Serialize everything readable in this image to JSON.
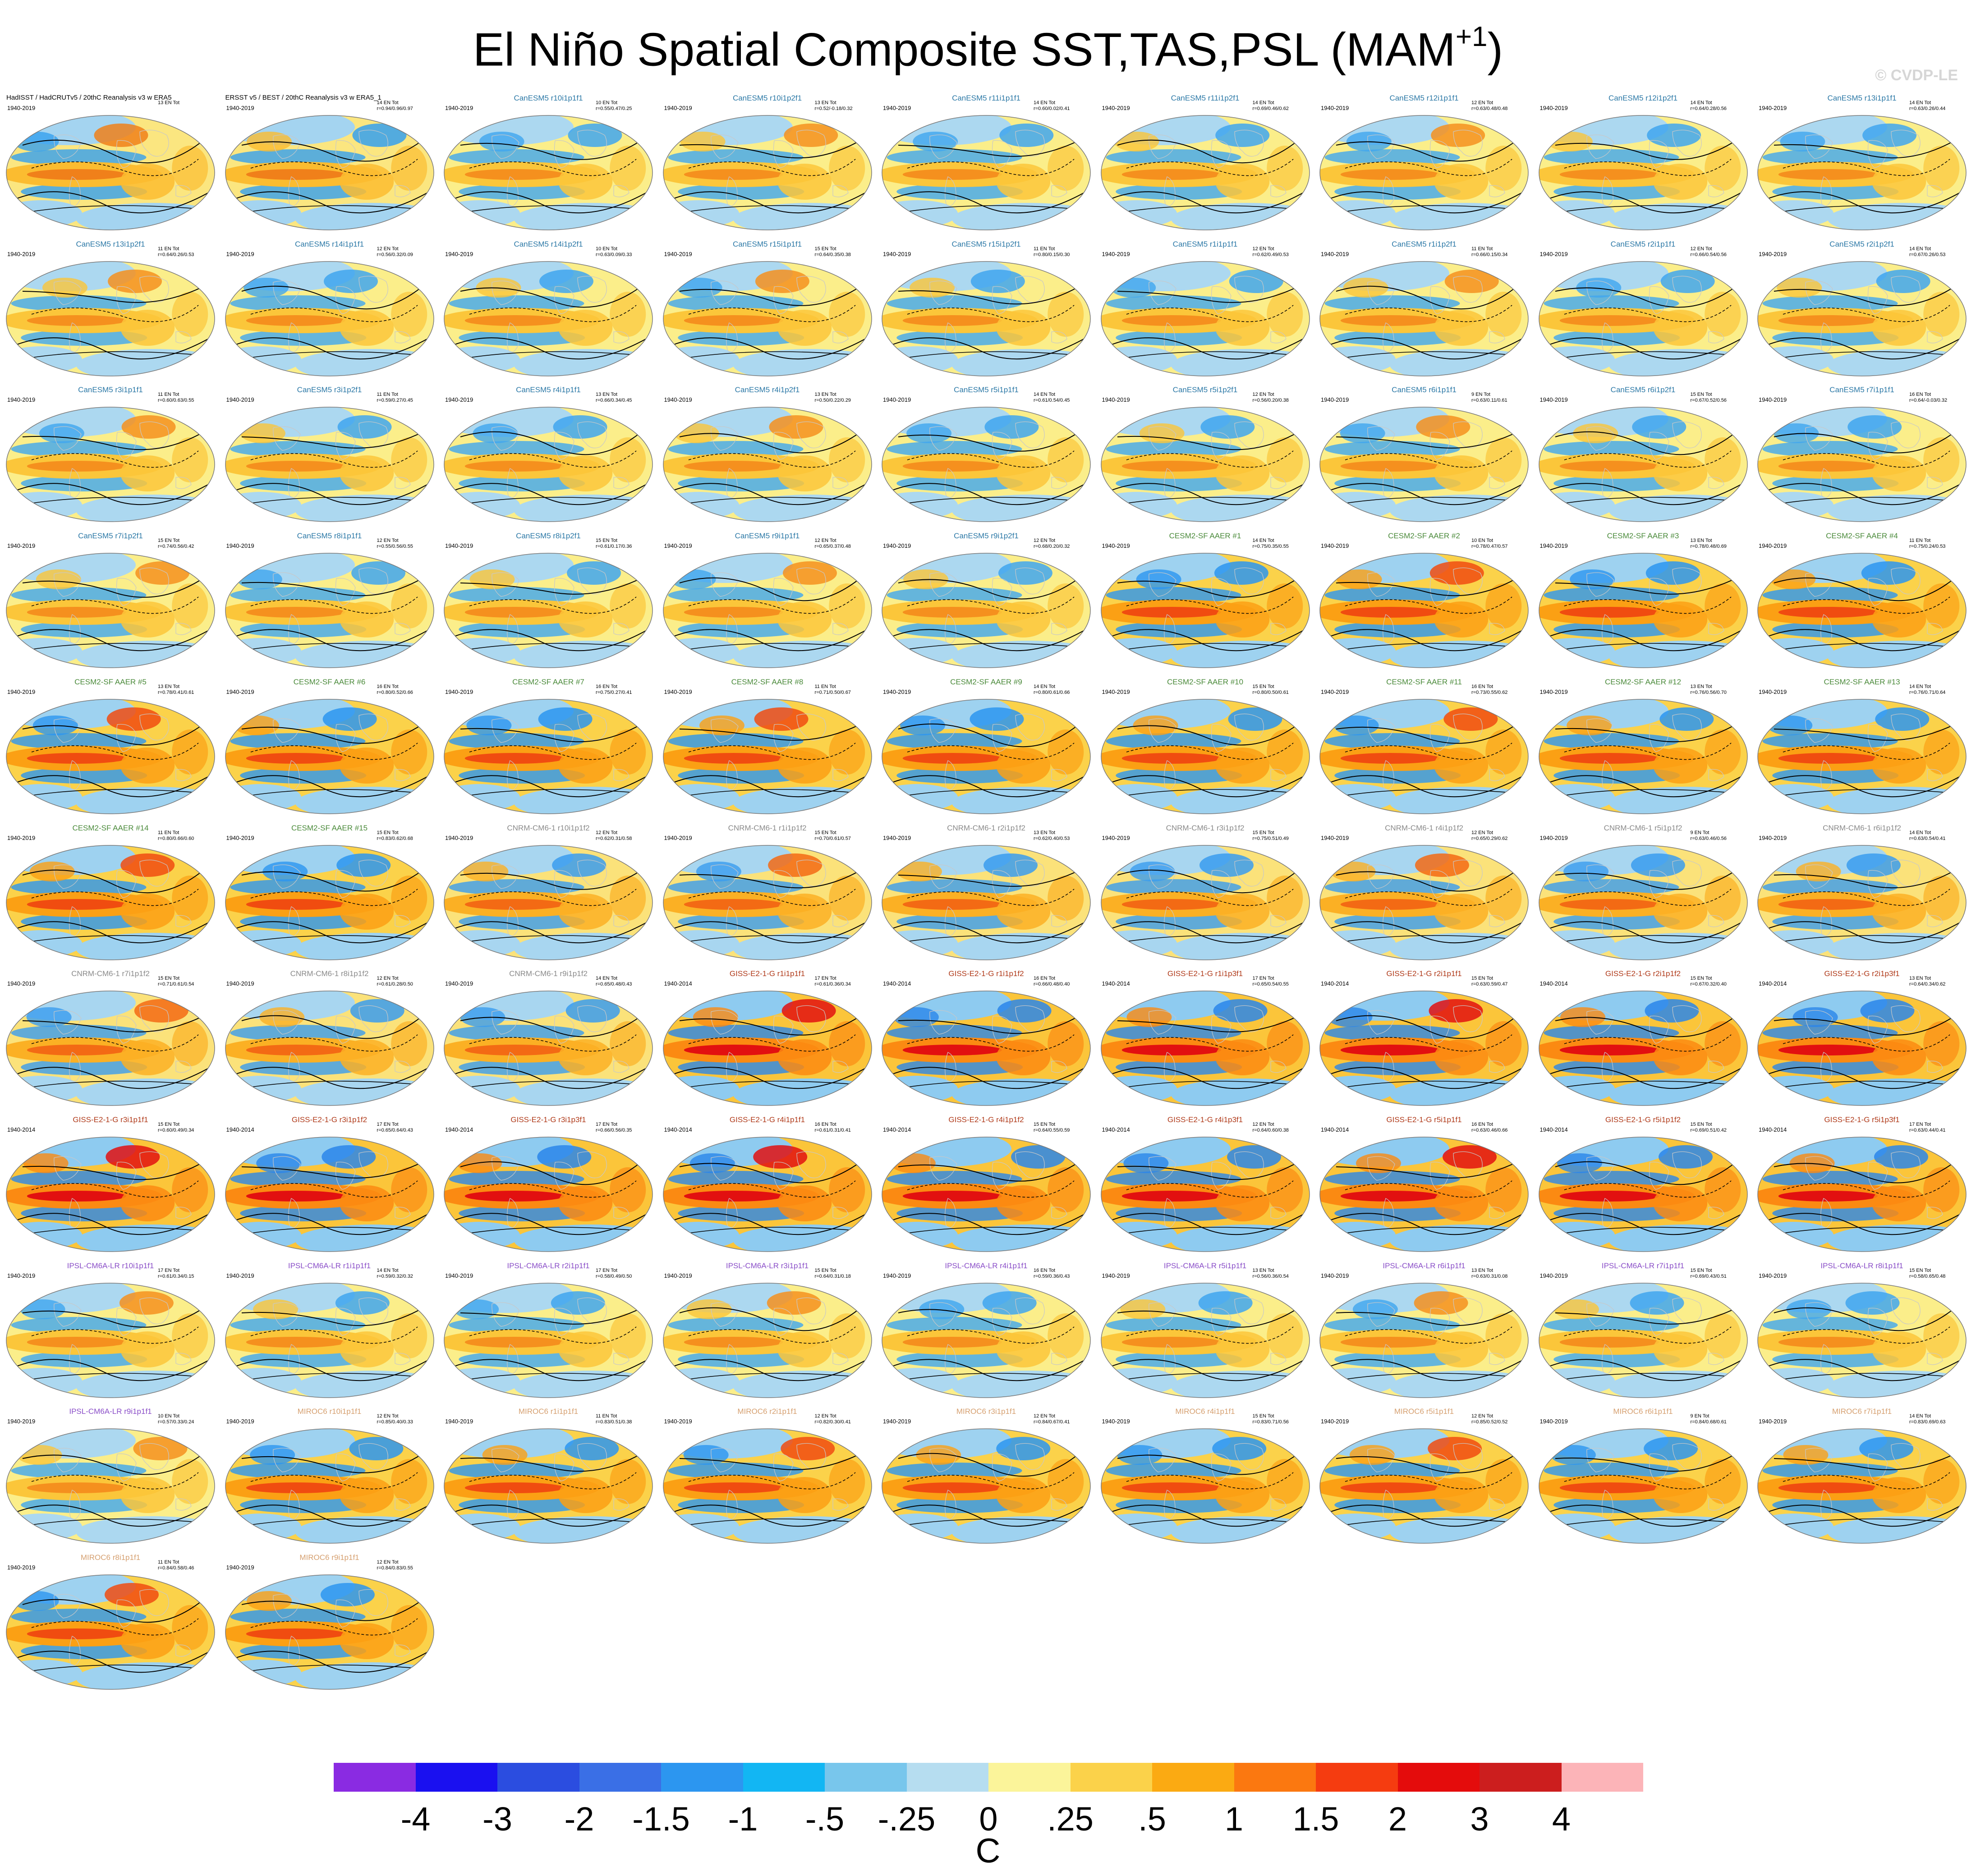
{
  "figure": {
    "title": "El Niño Spatial Composite SST,TAS,PSL (MAM",
    "title_sup": "+1",
    "title_close": ")",
    "watermark": "© CVDP-LE"
  },
  "colorbar": {
    "colors": [
      "#8a2be2",
      "#1a10f0",
      "#2b4de0",
      "#3a6fe6",
      "#2c96f0",
      "#12b6f3",
      "#78c6ec",
      "#b6ddf0",
      "#fbf49a",
      "#fbd24a",
      "#fbaa12",
      "#fb7810",
      "#f53c10",
      "#e40c0c",
      "#cc1e1e",
      "#fcb4b8"
    ],
    "labels": [
      "-4",
      "-3",
      "-2",
      "-1.5",
      "-1",
      "-.5",
      "-.25",
      "0",
      ".25",
      ".5",
      "1",
      "1.5",
      "2",
      "3",
      "4"
    ],
    "units": "C"
  },
  "panels": [
    {
      "name": "HadISST / HadCRUTv5 / 20thC Reanalysis v3 w ERA5",
      "years": "1940-2019",
      "events": "13 EN Tot",
      "stats": "",
      "color": "#000000",
      "style": "obs"
    },
    {
      "name": "ERSST v5 / BEST / 20thC Reanalysis v3 w ERA5_1",
      "years": "1940-2019",
      "events": "14 EN Tot",
      "stats": "r=0.94/0.96/0.97",
      "color": "#000000",
      "style": "obs"
    },
    {
      "name": "CanESM5 r10i1p1f1",
      "years": "1940-2019",
      "events": "10 EN Tot",
      "stats": "r=0.55/0.47/0.25",
      "color": "#2b78a6",
      "style": "pale"
    },
    {
      "name": "CanESM5 r10i1p2f1",
      "years": "1940-2019",
      "events": "13 EN Tot",
      "stats": "r=0.52/-0.18/0.32",
      "color": "#2b78a6",
      "style": "pale"
    },
    {
      "name": "CanESM5 r11i1p1f1",
      "years": "1940-2019",
      "events": "14 EN Tot",
      "stats": "r=0.60/0.02/0.41",
      "color": "#2b78a6",
      "style": "pale"
    },
    {
      "name": "CanESM5 r11i1p2f1",
      "years": "1940-2019",
      "events": "14 EN Tot",
      "stats": "r=0.69/0.46/0.62",
      "color": "#2b78a6",
      "style": "pale"
    },
    {
      "name": "CanESM5 r12i1p1f1",
      "years": "1940-2019",
      "events": "12 EN Tot",
      "stats": "r=0.63/0.48/0.48",
      "color": "#2b78a6",
      "style": "pale"
    },
    {
      "name": "CanESM5 r12i1p2f1",
      "years": "1940-2019",
      "events": "14 EN Tot",
      "stats": "r=0.64/0.28/0.56",
      "color": "#2b78a6",
      "style": "pale"
    },
    {
      "name": "CanESM5 r13i1p1f1",
      "years": "1940-2019",
      "events": "14 EN Tot",
      "stats": "r=0.63/0.26/0.44",
      "color": "#2b78a6",
      "style": "pale"
    },
    {
      "name": "CanESM5 r13i1p2f1",
      "years": "1940-2019",
      "events": "11 EN Tot",
      "stats": "r=0.64/0.26/0.53",
      "color": "#2b78a6",
      "style": "pale"
    },
    {
      "name": "CanESM5 r14i1p1f1",
      "years": "1940-2019",
      "events": "12 EN Tot",
      "stats": "r=0.56/0.32/0.09",
      "color": "#2b78a6",
      "style": "pale"
    },
    {
      "name": "CanESM5 r14i1p2f1",
      "years": "1940-2019",
      "events": "10 EN Tot",
      "stats": "r=0.63/0.09/0.33",
      "color": "#2b78a6",
      "style": "pale"
    },
    {
      "name": "CanESM5 r15i1p1f1",
      "years": "1940-2019",
      "events": "15 EN Tot",
      "stats": "r=0.64/0.35/0.38",
      "color": "#2b78a6",
      "style": "pale"
    },
    {
      "name": "CanESM5 r15i1p2f1",
      "years": "1940-2019",
      "events": "11 EN Tot",
      "stats": "r=0.80/0.15/0.30",
      "color": "#2b78a6",
      "style": "pale"
    },
    {
      "name": "CanESM5 r1i1p1f1",
      "years": "1940-2019",
      "events": "12 EN Tot",
      "stats": "r=0.62/0.49/0.53",
      "color": "#2b78a6",
      "style": "pale"
    },
    {
      "name": "CanESM5 r1i1p2f1",
      "years": "1940-2019",
      "events": "11 EN Tot",
      "stats": "r=0.66/0.15/0.34",
      "color": "#2b78a6",
      "style": "pale"
    },
    {
      "name": "CanESM5 r2i1p1f1",
      "years": "1940-2019",
      "events": "12 EN Tot",
      "stats": "r=0.66/0.54/0.56",
      "color": "#2b78a6",
      "style": "pale"
    },
    {
      "name": "CanESM5 r2i1p2f1",
      "years": "1940-2019",
      "events": "14 EN Tot",
      "stats": "r=0.67/0.26/0.53",
      "color": "#2b78a6",
      "style": "pale"
    },
    {
      "name": "CanESM5 r3i1p1f1",
      "years": "1940-2019",
      "events": "11 EN Tot",
      "stats": "r=0.60/0.63/0.55",
      "color": "#2b78a6",
      "style": "pale"
    },
    {
      "name": "CanESM5 r3i1p2f1",
      "years": "1940-2019",
      "events": "11 EN Tot",
      "stats": "r=0.59/0.27/0.45",
      "color": "#2b78a6",
      "style": "pale"
    },
    {
      "name": "CanESM5 r4i1p1f1",
      "years": "1940-2019",
      "events": "13 EN Tot",
      "stats": "r=0.66/0.34/0.45",
      "color": "#2b78a6",
      "style": "pale"
    },
    {
      "name": "CanESM5 r4i1p2f1",
      "years": "1940-2019",
      "events": "13 EN Tot",
      "stats": "r=0.50/0.22/0.29",
      "color": "#2b78a6",
      "style": "pale"
    },
    {
      "name": "CanESM5 r5i1p1f1",
      "years": "1940-2019",
      "events": "14 EN Tot",
      "stats": "r=0.61/0.54/0.45",
      "color": "#2b78a6",
      "style": "pale"
    },
    {
      "name": "CanESM5 r5i1p2f1",
      "years": "1940-2019",
      "events": "12 EN Tot",
      "stats": "r=0.56/0.20/0.38",
      "color": "#2b78a6",
      "style": "pale"
    },
    {
      "name": "CanESM5 r6i1p1f1",
      "years": "1940-2019",
      "events": "9 EN Tot",
      "stats": "r=0.63/0.11/0.61",
      "color": "#2b78a6",
      "style": "pale"
    },
    {
      "name": "CanESM5 r6i1p2f1",
      "years": "1940-2019",
      "events": "15 EN Tot",
      "stats": "r=0.67/0.52/0.56",
      "color": "#2b78a6",
      "style": "pale"
    },
    {
      "name": "CanESM5 r7i1p1f1",
      "years": "1940-2019",
      "events": "16 EN Tot",
      "stats": "r=0.64/-0.03/0.32",
      "color": "#2b78a6",
      "style": "pale"
    },
    {
      "name": "CanESM5 r7i1p2f1",
      "years": "1940-2019",
      "events": "15 EN Tot",
      "stats": "r=0.74/0.56/0.42",
      "color": "#2b78a6",
      "style": "pale"
    },
    {
      "name": "CanESM5 r8i1p1f1",
      "years": "1940-2019",
      "events": "12 EN Tot",
      "stats": "r=0.55/0.56/0.55",
      "color": "#2b78a6",
      "style": "pale"
    },
    {
      "name": "CanESM5 r8i1p2f1",
      "years": "1940-2019",
      "events": "15 EN Tot",
      "stats": "r=0.61/0.17/0.36",
      "color": "#2b78a6",
      "style": "pale"
    },
    {
      "name": "CanESM5 r9i1p1f1",
      "years": "1940-2019",
      "events": "12 EN Tot",
      "stats": "r=0.65/0.37/0.48",
      "color": "#2b78a6",
      "style": "pale"
    },
    {
      "name": "CanESM5 r9i1p2f1",
      "years": "1940-2019",
      "events": "12 EN Tot",
      "stats": "r=0.68/0.20/0.32",
      "color": "#2b78a6",
      "style": "pale"
    },
    {
      "name": "CESM2-SF AAER #1",
      "years": "1940-2019",
      "events": "14 EN Tot",
      "stats": "r=0.75/0.35/0.55",
      "color": "#4a8a3a",
      "style": "strong"
    },
    {
      "name": "CESM2-SF AAER #2",
      "years": "1940-2019",
      "events": "10 EN Tot",
      "stats": "r=0.78/0.47/0.57",
      "color": "#4a8a3a",
      "style": "strong"
    },
    {
      "name": "CESM2-SF AAER #3",
      "years": "1940-2019",
      "events": "13 EN Tot",
      "stats": "r=0.78/0.48/0.69",
      "color": "#4a8a3a",
      "style": "strong"
    },
    {
      "name": "CESM2-SF AAER #4",
      "years": "1940-2019",
      "events": "11 EN Tot",
      "stats": "r=0.75/0.24/0.53",
      "color": "#4a8a3a",
      "style": "strong"
    },
    {
      "name": "CESM2-SF AAER #5",
      "years": "1940-2019",
      "events": "13 EN Tot",
      "stats": "r=0.78/0.41/0.61",
      "color": "#4a8a3a",
      "style": "strong"
    },
    {
      "name": "CESM2-SF AAER #6",
      "years": "1940-2019",
      "events": "16 EN Tot",
      "stats": "r=0.80/0.52/0.66",
      "color": "#4a8a3a",
      "style": "strong"
    },
    {
      "name": "CESM2-SF AAER #7",
      "years": "1940-2019",
      "events": "16 EN Tot",
      "stats": "r=0.75/0.27/0.41",
      "color": "#4a8a3a",
      "style": "strong"
    },
    {
      "name": "CESM2-SF AAER #8",
      "years": "1940-2019",
      "events": "11 EN Tot",
      "stats": "r=0.71/0.50/0.67",
      "color": "#4a8a3a",
      "style": "strong"
    },
    {
      "name": "CESM2-SF AAER #9",
      "years": "1940-2019",
      "events": "14 EN Tot",
      "stats": "r=0.80/0.61/0.66",
      "color": "#4a8a3a",
      "style": "strong"
    },
    {
      "name": "CESM2-SF AAER #10",
      "years": "1940-2019",
      "events": "15 EN Tot",
      "stats": "r=0.80/0.50/0.61",
      "color": "#4a8a3a",
      "style": "strong"
    },
    {
      "name": "CESM2-SF AAER #11",
      "years": "1940-2019",
      "events": "16 EN Tot",
      "stats": "r=0.73/0.55/0.62",
      "color": "#4a8a3a",
      "style": "strong"
    },
    {
      "name": "CESM2-SF AAER #12",
      "years": "1940-2019",
      "events": "13 EN Tot",
      "stats": "r=0.76/0.56/0.70",
      "color": "#4a8a3a",
      "style": "strong"
    },
    {
      "name": "CESM2-SF AAER #13",
      "years": "1940-2019",
      "events": "14 EN Tot",
      "stats": "r=0.76/0.71/0.64",
      "color": "#4a8a3a",
      "style": "strong"
    },
    {
      "name": "CESM2-SF AAER #14",
      "years": "1940-2019",
      "events": "11 EN Tot",
      "stats": "r=0.80/0.66/0.60",
      "color": "#4a8a3a",
      "style": "strong"
    },
    {
      "name": "CESM2-SF AAER #15",
      "years": "1940-2019",
      "events": "15 EN Tot",
      "stats": "r=0.83/0.62/0.68",
      "color": "#4a8a3a",
      "style": "strong"
    },
    {
      "name": "CNRM-CM6-1 r10i1p1f2",
      "years": "1940-2019",
      "events": "12 EN Tot",
      "stats": "r=0.62/0.31/0.58",
      "color": "#8a8a8a",
      "style": "mid"
    },
    {
      "name": "CNRM-CM6-1 r1i1p1f2",
      "years": "1940-2019",
      "events": "15 EN Tot",
      "stats": "r=0.70/0.61/0.57",
      "color": "#8a8a8a",
      "style": "mid"
    },
    {
      "name": "CNRM-CM6-1 r2i1p1f2",
      "years": "1940-2019",
      "events": "13 EN Tot",
      "stats": "r=0.62/0.40/0.53",
      "color": "#8a8a8a",
      "style": "mid"
    },
    {
      "name": "CNRM-CM6-1 r3i1p1f2",
      "years": "1940-2019",
      "events": "15 EN Tot",
      "stats": "r=0.75/0.51/0.49",
      "color": "#8a8a8a",
      "style": "mid"
    },
    {
      "name": "CNRM-CM6-1 r4i1p1f2",
      "years": "1940-2019",
      "events": "12 EN Tot",
      "stats": "r=0.65/0.29/0.62",
      "color": "#8a8a8a",
      "style": "mid"
    },
    {
      "name": "CNRM-CM6-1 r5i1p1f2",
      "years": "1940-2019",
      "events": "9 EN Tot",
      "stats": "r=0.63/0.46/0.56",
      "color": "#8a8a8a",
      "style": "mid"
    },
    {
      "name": "CNRM-CM6-1 r6i1p1f2",
      "years": "1940-2019",
      "events": "14 EN Tot",
      "stats": "r=0.63/0.54/0.41",
      "color": "#8a8a8a",
      "style": "mid"
    },
    {
      "name": "CNRM-CM6-1 r7i1p1f2",
      "years": "1940-2019",
      "events": "15 EN Tot",
      "stats": "r=0.71/0.61/0.54",
      "color": "#8a8a8a",
      "style": "mid"
    },
    {
      "name": "CNRM-CM6-1 r8i1p1f2",
      "years": "1940-2019",
      "events": "12 EN Tot",
      "stats": "r=0.61/0.28/0.50",
      "color": "#8a8a8a",
      "style": "mid"
    },
    {
      "name": "CNRM-CM6-1 r9i1p1f2",
      "years": "1940-2019",
      "events": "14 EN Tot",
      "stats": "r=0.65/0.48/0.43",
      "color": "#8a8a8a",
      "style": "mid"
    },
    {
      "name": "GISS-E2-1-G r1i1p1f1",
      "years": "1940-2014",
      "events": "17 EN Tot",
      "stats": "r=0.61/0.36/0.34",
      "color": "#b03a1a",
      "style": "giss"
    },
    {
      "name": "GISS-E2-1-G r1i1p1f2",
      "years": "1940-2014",
      "events": "16 EN Tot",
      "stats": "r=0.66/0.48/0.40",
      "color": "#b03a1a",
      "style": "giss"
    },
    {
      "name": "GISS-E2-1-G r1i1p3f1",
      "years": "1940-2014",
      "events": "17 EN Tot",
      "stats": "r=0.65/0.54/0.55",
      "color": "#b03a1a",
      "style": "giss"
    },
    {
      "name": "GISS-E2-1-G r2i1p1f1",
      "years": "1940-2014",
      "events": "15 EN Tot",
      "stats": "r=0.63/0.59/0.47",
      "color": "#b03a1a",
      "style": "giss"
    },
    {
      "name": "GISS-E2-1-G r2i1p1f2",
      "years": "1940-2014",
      "events": "15 EN Tot",
      "stats": "r=0.67/0.32/0.40",
      "color": "#b03a1a",
      "style": "giss"
    },
    {
      "name": "GISS-E2-1-G r2i1p3f1",
      "years": "1940-2014",
      "events": "13 EN Tot",
      "stats": "r=0.64/0.34/0.62",
      "color": "#b03a1a",
      "style": "giss"
    },
    {
      "name": "GISS-E2-1-G r3i1p1f1",
      "years": "1940-2014",
      "events": "15 EN Tot",
      "stats": "r=0.60/0.49/0.34",
      "color": "#b03a1a",
      "style": "giss"
    },
    {
      "name": "GISS-E2-1-G r3i1p1f2",
      "years": "1940-2014",
      "events": "17 EN Tot",
      "stats": "r=0.65/0.64/0.43",
      "color": "#b03a1a",
      "style": "giss"
    },
    {
      "name": "GISS-E2-1-G r3i1p3f1",
      "years": "1940-2014",
      "events": "17 EN Tot",
      "stats": "r=0.66/0.56/0.35",
      "color": "#b03a1a",
      "style": "giss"
    },
    {
      "name": "GISS-E2-1-G r4i1p1f1",
      "years": "1940-2014",
      "events": "16 EN Tot",
      "stats": "r=0.61/0.31/0.41",
      "color": "#b03a1a",
      "style": "giss"
    },
    {
      "name": "GISS-E2-1-G r4i1p1f2",
      "years": "1940-2014",
      "events": "15 EN Tot",
      "stats": "r=0.64/0.55/0.59",
      "color": "#b03a1a",
      "style": "giss"
    },
    {
      "name": "GISS-E2-1-G r4i1p3f1",
      "years": "1940-2014",
      "events": "12 EN Tot",
      "stats": "r=0.64/0.60/0.38",
      "color": "#b03a1a",
      "style": "giss"
    },
    {
      "name": "GISS-E2-1-G r5i1p1f1",
      "years": "1940-2014",
      "events": "16 EN Tot",
      "stats": "r=0.63/0.46/0.66",
      "color": "#b03a1a",
      "style": "giss"
    },
    {
      "name": "GISS-E2-1-G r5i1p1f2",
      "years": "1940-2014",
      "events": "15 EN Tot",
      "stats": "r=0.69/0.51/0.42",
      "color": "#b03a1a",
      "style": "giss"
    },
    {
      "name": "GISS-E2-1-G r5i1p3f1",
      "years": "1940-2014",
      "events": "17 EN Tot",
      "stats": "r=0.63/0.44/0.41",
      "color": "#b03a1a",
      "style": "giss"
    },
    {
      "name": "IPSL-CM6A-LR r10i1p1f1",
      "years": "1940-2019",
      "events": "17 EN Tot",
      "stats": "r=0.61/0.34/0.15",
      "color": "#8a4ec8",
      "style": "pale"
    },
    {
      "name": "IPSL-CM6A-LR r1i1p1f1",
      "years": "1940-2019",
      "events": "14 EN Tot",
      "stats": "r=0.59/0.32/0.32",
      "color": "#8a4ec8",
      "style": "pale"
    },
    {
      "name": "IPSL-CM6A-LR r2i1p1f1",
      "years": "1940-2019",
      "events": "17 EN Tot",
      "stats": "r=0.58/0.49/0.50",
      "color": "#8a4ec8",
      "style": "pale"
    },
    {
      "name": "IPSL-CM6A-LR r3i1p1f1",
      "years": "1940-2019",
      "events": "15 EN Tot",
      "stats": "r=0.64/0.31/0.18",
      "color": "#8a4ec8",
      "style": "pale"
    },
    {
      "name": "IPSL-CM6A-LR r4i1p1f1",
      "years": "1940-2019",
      "events": "16 EN Tot",
      "stats": "r=0.59/0.36/0.43",
      "color": "#8a4ec8",
      "style": "pale"
    },
    {
      "name": "IPSL-CM6A-LR r5i1p1f1",
      "years": "1940-2019",
      "events": "13 EN Tot",
      "stats": "r=0.56/0.36/0.54",
      "color": "#8a4ec8",
      "style": "pale"
    },
    {
      "name": "IPSL-CM6A-LR r6i1p1f1",
      "years": "1940-2019",
      "events": "13 EN Tot",
      "stats": "r=0.63/0.31/0.08",
      "color": "#8a4ec8",
      "style": "pale"
    },
    {
      "name": "IPSL-CM6A-LR r7i1p1f1",
      "years": "1940-2019",
      "events": "15 EN Tot",
      "stats": "r=0.69/0.43/0.51",
      "color": "#8a4ec8",
      "style": "pale"
    },
    {
      "name": "IPSL-CM6A-LR r8i1p1f1",
      "years": "1940-2019",
      "events": "15 EN Tot",
      "stats": "r=0.58/0.65/0.48",
      "color": "#8a4ec8",
      "style": "pale"
    },
    {
      "name": "IPSL-CM6A-LR r9i1p1f1",
      "years": "1940-2019",
      "events": "10 EN Tot",
      "stats": "r=0.57/0.33/0.24",
      "color": "#8a4ec8",
      "style": "pale"
    },
    {
      "name": "MIROC6 r10i1p1f1",
      "years": "1940-2019",
      "events": "12 EN Tot",
      "stats": "r=0.85/0.40/0.33",
      "color": "#d6a070",
      "style": "strong"
    },
    {
      "name": "MIROC6 r1i1p1f1",
      "years": "1940-2019",
      "events": "11 EN Tot",
      "stats": "r=0.83/0.51/0.38",
      "color": "#d6a070",
      "style": "strong"
    },
    {
      "name": "MIROC6 r2i1p1f1",
      "years": "1940-2019",
      "events": "12 EN Tot",
      "stats": "r=0.82/0.30/0.41",
      "color": "#d6a070",
      "style": "strong"
    },
    {
      "name": "MIROC6 r3i1p1f1",
      "years": "1940-2019",
      "events": "12 EN Tot",
      "stats": "r=0.84/0.67/0.41",
      "color": "#d6a070",
      "style": "strong"
    },
    {
      "name": "MIROC6 r4i1p1f1",
      "years": "1940-2019",
      "events": "15 EN Tot",
      "stats": "r=0.83/0.71/0.56",
      "color": "#d6a070",
      "style": "strong"
    },
    {
      "name": "MIROC6 r5i1p1f1",
      "years": "1940-2019",
      "events": "12 EN Tot",
      "stats": "r=0.85/0.52/0.52",
      "color": "#d6a070",
      "style": "strong"
    },
    {
      "name": "MIROC6 r6i1p1f1",
      "years": "1940-2019",
      "events": "9 EN Tot",
      "stats": "r=0.84/0.68/0.61",
      "color": "#d6a070",
      "style": "strong"
    },
    {
      "name": "MIROC6 r7i1p1f1",
      "years": "1940-2019",
      "events": "14 EN Tot",
      "stats": "r=0.83/0.69/0.63",
      "color": "#d6a070",
      "style": "strong"
    },
    {
      "name": "MIROC6 r8i1p1f1",
      "years": "1940-2019",
      "events": "11 EN Tot",
      "stats": "r=0.84/0.58/0.46",
      "color": "#d6a070",
      "style": "strong"
    },
    {
      "name": "MIROC6 r9i1p1f1",
      "years": "1940-2019",
      "events": "12 EN Tot",
      "stats": "r=0.84/0.83/0.55",
      "color": "#d6a070",
      "style": "strong"
    }
  ]
}
